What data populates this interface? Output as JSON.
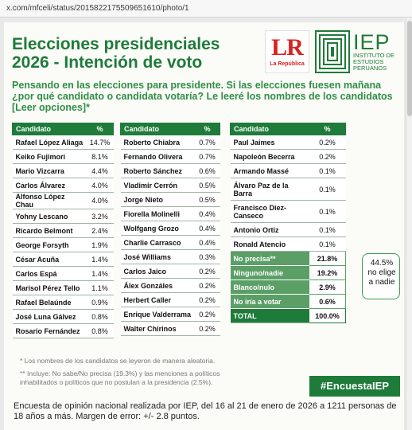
{
  "browser": {
    "url": "x.com/mfceli/status/2015822175509651610/photo/1"
  },
  "header": {
    "title_line1": "Elecciones presidenciales",
    "title_line2": "2026 - Intención de voto",
    "logo_lr": "LR",
    "logo_lr_sub": "La República",
    "logo_iep": "IEP",
    "logo_iep_sub": "INSTITUTO DE ESTUDIOS PERUANOS"
  },
  "question": "Pensando en las elecciones para presidente. Si las elecciones fuesen mañana ¿por qué candidato o candidata votaría? Le leeré los nombres de los candidatos [Leer opciones]*",
  "table_header": {
    "candidate": "Candidato",
    "percent": "%"
  },
  "table1": [
    {
      "name": "Rafael López Aliaga",
      "pct": "14.7%"
    },
    {
      "name": "Keiko Fujimori",
      "pct": "8.1%"
    },
    {
      "name": "Mario Vizcarra",
      "pct": "4.4%"
    },
    {
      "name": "Carlos Álvarez",
      "pct": "4.0%"
    },
    {
      "name": "Alfonso López Chau",
      "pct": "4.0%"
    },
    {
      "name": "Yohny Lescano",
      "pct": "3.2%"
    },
    {
      "name": "Ricardo Belmont",
      "pct": "2.4%"
    },
    {
      "name": "George Forsyth",
      "pct": "1.9%"
    },
    {
      "name": "César Acuña",
      "pct": "1.4%"
    },
    {
      "name": "Carlos Espá",
      "pct": "1.4%"
    },
    {
      "name": "Marisol Pérez Tello",
      "pct": "1.1%"
    },
    {
      "name": "Rafael Belaúnde",
      "pct": "0.9%"
    },
    {
      "name": "José Luna Gálvez",
      "pct": "0.8%"
    },
    {
      "name": "Rosario Fernández",
      "pct": "0.8%"
    }
  ],
  "table2": [
    {
      "name": "Roberto Chiabra",
      "pct": "0.7%"
    },
    {
      "name": "Fernando Olivera",
      "pct": "0.7%"
    },
    {
      "name": "Roberto Sánchez",
      "pct": "0.6%"
    },
    {
      "name": "Vladimir Cerrón",
      "pct": "0.5%"
    },
    {
      "name": "Jorge Nieto",
      "pct": "0.5%"
    },
    {
      "name": "Fiorella Molinelli",
      "pct": "0.4%"
    },
    {
      "name": "Wolfgang Grozo",
      "pct": "0.4%"
    },
    {
      "name": "Charlie Carrasco",
      "pct": "0.4%"
    },
    {
      "name": "José Williams",
      "pct": "0.3%"
    },
    {
      "name": "Carlos Jaico",
      "pct": "0.2%"
    },
    {
      "name": "Álex Gonzáles",
      "pct": "0.2%"
    },
    {
      "name": "Herbert Caller",
      "pct": "0.2%"
    },
    {
      "name": "Enrique Valderrama",
      "pct": "0.2%"
    },
    {
      "name": "Walter Chirinos",
      "pct": "0.2%"
    }
  ],
  "table3": [
    {
      "name": "Paul Jaimes",
      "pct": "0.2%"
    },
    {
      "name": "Napoleón Becerra",
      "pct": "0.2%"
    },
    {
      "name": "Armando Massé",
      "pct": "0.1%"
    },
    {
      "name": "Álvaro Paz de la Barra",
      "pct": "0.1%"
    },
    {
      "name": "Francisco Diez-Canseco",
      "pct": "0.1%"
    },
    {
      "name": "Antonio Ortiz",
      "pct": "0.1%"
    },
    {
      "name": "Ronald Atencio",
      "pct": "0.1%"
    }
  ],
  "table3_special": [
    {
      "name": "No precisa**",
      "pct": "21.8%"
    },
    {
      "name": "Ninguno/nadie",
      "pct": "19.2%"
    },
    {
      "name": "Blanco/nulo",
      "pct": "2.9%"
    },
    {
      "name": "No iría a votar",
      "pct": "0.6%"
    }
  ],
  "table3_total": {
    "name": "TOTAL",
    "pct": "100.0%"
  },
  "brace_callout": {
    "line1": "44.5%",
    "line2": "no elige",
    "line3": "a nadie"
  },
  "notes": {
    "note1": "*  Los nombres de los candidatos se leyeron de manera aleatoria.",
    "note2": "** Incluye: No sabe/No precisa (19.3%) y las menciones a políticos inhabilitados o políticos que no postulan a la presidencia (2.5%)."
  },
  "hashtag": "#EncuestaIEP",
  "footer": "Encuesta de opinión nacional realizada por IEP, del 16 al 21 de enero de 2026 a 1211 personas de 18 años a más. Margen de error: +/- 2.8 puntos.",
  "colors": {
    "brand_green": "#1e7b3a",
    "question_green": "#2f8f45",
    "special_green": "#5b9f66",
    "lr_red": "#d8221f"
  }
}
